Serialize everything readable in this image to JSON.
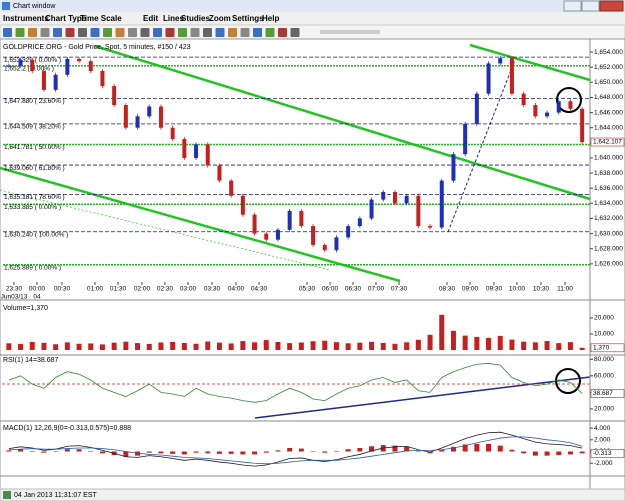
{
  "window_title": "Chart window",
  "menu": [
    "Instruments",
    "Chart Type",
    "Time Scale",
    "Edit",
    "Lines",
    "Studies",
    "Zoom",
    "Settings",
    "Help"
  ],
  "status_bar": "04 Jan 2013 11:31:07 EST",
  "chart_data": [
    {
      "type": "candlestick",
      "title": "GOLDPRICE.ORG - Gold Price, Spot, 5 minutes, #150 / 423",
      "values": [
        1652.2,
        1653.0,
        1651.5,
        1649.0,
        1651.0,
        1653.1,
        1652.8,
        1651.5,
        1649.5,
        1647.0,
        1644.0,
        1645.5,
        1646.8,
        1644.0,
        1642.5,
        1640.0,
        1641.8,
        1639.0,
        1637.0,
        1635.0,
        1632.5,
        1630.0,
        1629.2,
        1630.5,
        1633.0,
        1631.0,
        1628.5,
        1627.8,
        1629.5,
        1631.0,
        1632.0,
        1634.5,
        1635.5,
        1634.0,
        1635.0,
        1631.0,
        1630.8,
        1637.0,
        1640.5,
        1644.5,
        1648.5,
        1652.5,
        1653.2,
        1648.5,
        1647.0,
        1645.5,
        1646.0,
        1647.5,
        1646.5,
        1642.1
      ],
      "up_color": "#1f2fb8",
      "down_color": "#c81e1e",
      "ylim": [
        1623.6,
        1655.2
      ],
      "yticks": [
        {
          "value": 1654,
          "label": "1,654.000"
        },
        {
          "value": 1652,
          "label": "1,652.000"
        },
        {
          "value": 1650,
          "label": "1,650.000"
        },
        {
          "value": 1648,
          "label": "1,648.000"
        },
        {
          "value": 1646,
          "label": "1,646.000"
        },
        {
          "value": 1644,
          "label": "1,644.000"
        },
        {
          "value": 1642,
          "label": "1,642.000"
        },
        {
          "value": 1640,
          "label": "1,640.000"
        },
        {
          "value": 1638,
          "label": "1,638.000"
        },
        {
          "value": 1636,
          "label": "1,636.000"
        },
        {
          "value": 1634,
          "label": "1,634.000"
        },
        {
          "value": 1632,
          "label": "1,632.000"
        },
        {
          "value": 1630,
          "label": "1,630.000"
        },
        {
          "value": 1628,
          "label": "1,628.000"
        },
        {
          "value": 1626,
          "label": "1,626.000"
        }
      ],
      "last_value": {
        "value": 1642.107,
        "label": "1,642.107"
      },
      "fib_levels": [
        {
          "value": 1653.329,
          "label": "1,653.329 ( 0.00% )",
          "color": "#1a1a6e"
        },
        {
          "value": 1652.2,
          "label": "1,652.2 ( 0.00% )",
          "color": "#22b422"
        },
        {
          "value": 1647.88,
          "label": "1,647.880 ( 23.60% )",
          "color": "#1a1a6e"
        },
        {
          "value": 1644.509,
          "label": "1,644.509 ( 38.20% )",
          "color": "#1a1a6e"
        },
        {
          "value": 1641.781,
          "label": "1,641.781 ( 50.00% )",
          "color": "#22b422"
        },
        {
          "value": 1639.06,
          "label": "1,639.060 ( 61.80% )",
          "color": "#1a1a6e"
        },
        {
          "value": 1635.181,
          "label": "1,635.181 ( 78.60% )",
          "color": "#1a1a6e"
        },
        {
          "value": 1633.885,
          "label": "1,633.885 ( 0.00% )",
          "color": "#22b422"
        },
        {
          "value": 1630.24,
          "label": "1,630.240 ( 100.00% )",
          "color": "#1a1a6e"
        },
        {
          "value": 1625.889,
          "label": "1,625.889 ( 0.00% )",
          "color": "#22b422"
        }
      ],
      "time_labels": [
        "23:30",
        "00:00",
        "00:30",
        "01:00",
        "01:30",
        "02:00",
        "02:30",
        "03:00",
        "03:30",
        "04:00",
        "04:30",
        "05:30",
        "06:00",
        "06:30",
        "07:00",
        "07:30",
        "08:30",
        "09:00",
        "09:30",
        "10:00",
        "10:30",
        "11:00"
      ],
      "date_labels": [
        "Jun03/13",
        "04"
      ]
    },
    {
      "type": "bar",
      "title": "Volume=1,370",
      "color": "#c81e1e",
      "values": [
        4200,
        3800,
        5000,
        4500,
        3600,
        4800,
        3900,
        4100,
        3500,
        4600,
        5200,
        4300,
        3800,
        4700,
        5100,
        4400,
        3900,
        5300,
        4600,
        4100,
        5600,
        4800,
        6200,
        5000,
        4300,
        4700,
        5500,
        5800,
        4900,
        4200,
        4600,
        5100,
        4400,
        3900,
        4800,
        6400,
        9500,
        22000,
        12000,
        9000,
        8200,
        7600,
        8800,
        6500,
        5200,
        4800,
        5600,
        4300,
        4900,
        1370
      ],
      "ylim": [
        -2500,
        28750
      ],
      "yticks": [
        {
          "value": 20000,
          "label": "20,000"
        },
        {
          "value": 10000,
          "label": "10,000"
        }
      ],
      "last_value": {
        "value": 1370,
        "label": "1,370"
      }
    },
    {
      "type": "line",
      "title": "RSI(1) 14=38.687",
      "color": "#2e8b2e",
      "values": [
        55,
        60,
        50,
        45,
        58,
        65,
        62,
        55,
        45,
        40,
        35,
        42,
        50,
        40,
        38,
        35,
        45,
        38,
        35,
        33,
        30,
        28,
        30,
        38,
        45,
        40,
        32,
        30,
        38,
        45,
        48,
        55,
        58,
        52,
        55,
        42,
        40,
        58,
        65,
        70,
        74,
        75,
        73,
        58,
        52,
        48,
        50,
        55,
        52,
        38.687
      ],
      "ylim": [
        9,
        84
      ],
      "yticks": [
        {
          "value": 80,
          "label": "80.000"
        },
        {
          "value": 60,
          "label": "60.000"
        },
        {
          "value": 40,
          "label": "40.000"
        },
        {
          "value": 20,
          "label": "20.000"
        }
      ],
      "last_value": {
        "value": 38.687,
        "label": "38.687"
      }
    },
    {
      "type": "macd",
      "title": "MACD(1) 12,26,9(0=-0.313,0.575)=0.888",
      "macd": [
        0.5,
        0.8,
        0.6,
        0.2,
        0.4,
        0.9,
        1.0,
        0.7,
        0.2,
        -0.3,
        -0.9,
        -1.0,
        -0.7,
        -0.9,
        -1.2,
        -1.5,
        -1.3,
        -1.5,
        -1.8,
        -2.0,
        -2.3,
        -2.5,
        -2.3,
        -1.8,
        -1.2,
        -1.1,
        -1.5,
        -1.7,
        -1.4,
        -0.9,
        -0.5,
        0.1,
        0.6,
        0.8,
        0.9,
        0.3,
        -0.1,
        0.6,
        1.4,
        2.2,
        2.8,
        3.2,
        3.3,
        2.8,
        2.2,
        1.6,
        1.3,
        1.2,
        1.0,
        0.575
      ],
      "signal": [
        0.3,
        0.4,
        0.5,
        0.4,
        0.4,
        0.5,
        0.6,
        0.6,
        0.5,
        0.3,
        0.0,
        -0.3,
        -0.5,
        -0.6,
        -0.8,
        -1.0,
        -1.1,
        -1.2,
        -1.4,
        -1.6,
        -1.8,
        -2.0,
        -2.1,
        -2.0,
        -1.8,
        -1.6,
        -1.5,
        -1.5,
        -1.5,
        -1.3,
        -1.1,
        -0.8,
        -0.5,
        -0.2,
        0.1,
        0.2,
        0.2,
        0.3,
        0.6,
        1.0,
        1.5,
        1.9,
        2.3,
        2.5,
        2.5,
        2.3,
        2.0,
        1.8,
        1.5,
        0.888
      ],
      "histogram": [
        0.2,
        0.4,
        0.1,
        -0.2,
        0.0,
        0.4,
        0.4,
        0.1,
        -0.3,
        -0.6,
        -0.9,
        -0.7,
        -0.2,
        -0.3,
        -0.4,
        -0.5,
        -0.2,
        -0.3,
        -0.4,
        -0.4,
        -0.5,
        -0.5,
        -0.2,
        0.2,
        0.6,
        0.5,
        0.0,
        -0.2,
        0.1,
        0.4,
        0.6,
        0.9,
        1.1,
        1.0,
        0.8,
        0.1,
        -0.3,
        0.3,
        0.8,
        1.2,
        1.3,
        1.3,
        1.0,
        0.3,
        -0.3,
        -0.7,
        -0.7,
        -0.6,
        -0.5,
        -0.313
      ],
      "macd_color": "#1a1a1a",
      "signal_color": "#2a5caa",
      "histogram_color": "#c81e1e",
      "ylim": [
        -3.5,
        4.7
      ],
      "yticks": [
        {
          "value": 4,
          "label": "4.000"
        },
        {
          "value": 2,
          "label": "2.000"
        },
        {
          "value": 0,
          "label": "0.000"
        },
        {
          "value": -2,
          "label": "-2.000"
        }
      ],
      "last_value": {
        "value": -0.313,
        "label": "-0.313"
      }
    }
  ]
}
